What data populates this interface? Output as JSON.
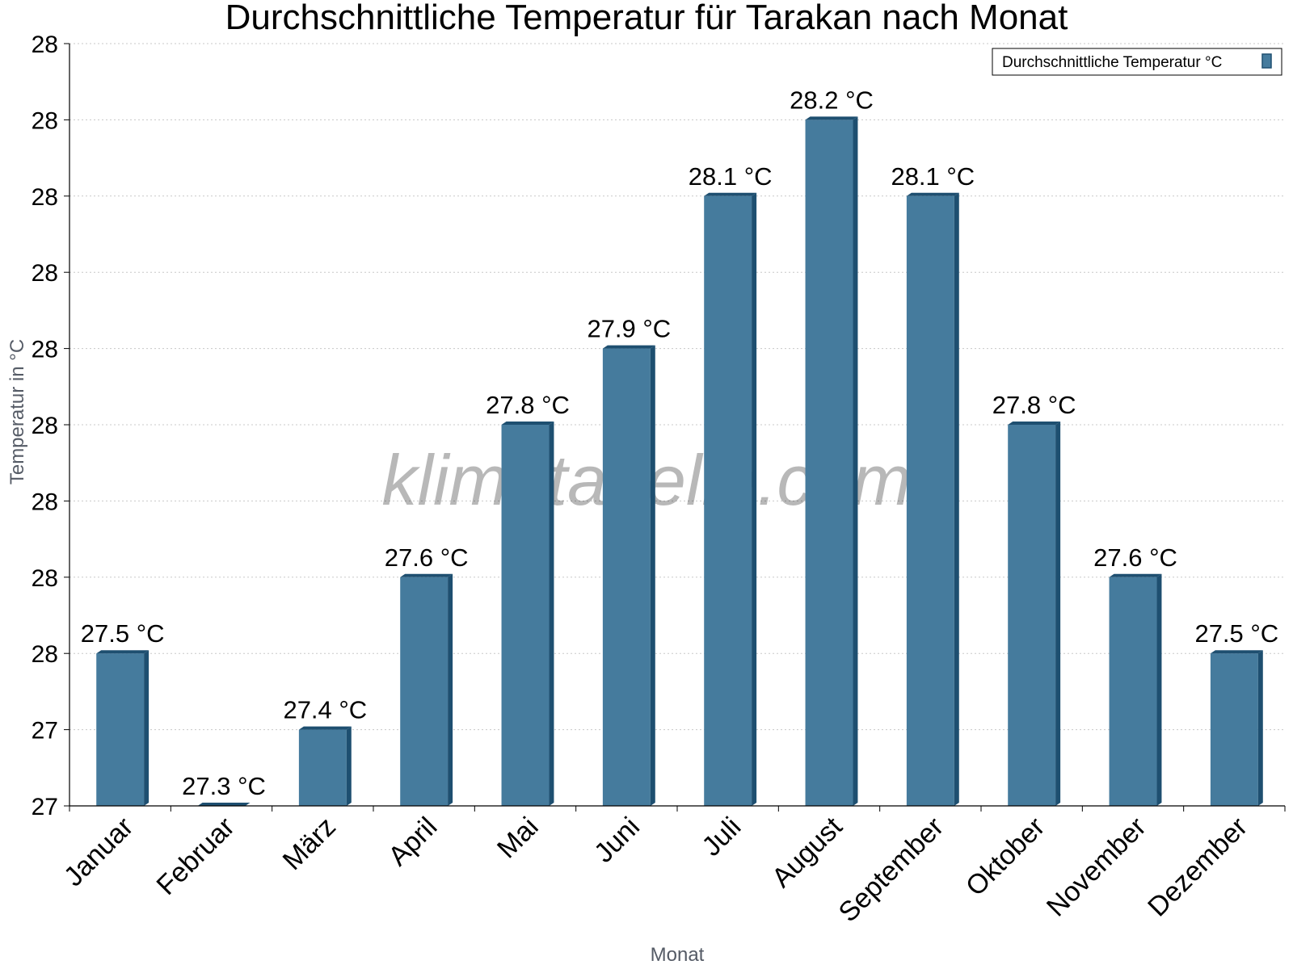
{
  "chart_data": {
    "type": "bar",
    "title": "Durchschnittliche Temperatur für Tarakan nach Monat",
    "xlabel": "Monat",
    "ylabel": "Temperatur in °C",
    "categories": [
      "Januar",
      "Februar",
      "März",
      "April",
      "Mai",
      "Juni",
      "Juli",
      "August",
      "September",
      "Oktober",
      "November",
      "Dezember"
    ],
    "series": [
      {
        "name": "Durchschnittliche Temperatur °C",
        "values": [
          27.5,
          27.3,
          27.4,
          27.6,
          27.8,
          27.9,
          28.1,
          28.2,
          28.1,
          27.8,
          27.6,
          27.5
        ],
        "value_labels": [
          "27.5 °C",
          "27.3 °C",
          "27.4 °C",
          "27.6 °C",
          "27.8 °C",
          "27.9 °C",
          "28.1 °C",
          "28.2 °C",
          "28.1 °C",
          "27.8 °C",
          "27.6 °C",
          "27.5 °C"
        ]
      }
    ],
    "ylim": [
      27.3,
      28.3
    ],
    "y_tick_values": [
      27.3,
      27.4,
      27.5,
      27.6,
      27.7,
      27.8,
      27.9,
      28.0,
      28.1,
      28.2,
      28.3
    ],
    "y_tick_labels": [
      "27",
      "27",
      "28",
      "28",
      "28",
      "28",
      "28",
      "28",
      "28",
      "28",
      "28"
    ],
    "grid": true,
    "legend_position": "top-right",
    "colors": {
      "bar": "#457b9d",
      "bar_side": "#1e4f70",
      "bar_top": "#1e4f70"
    }
  },
  "watermark": "klimatabelle.com"
}
